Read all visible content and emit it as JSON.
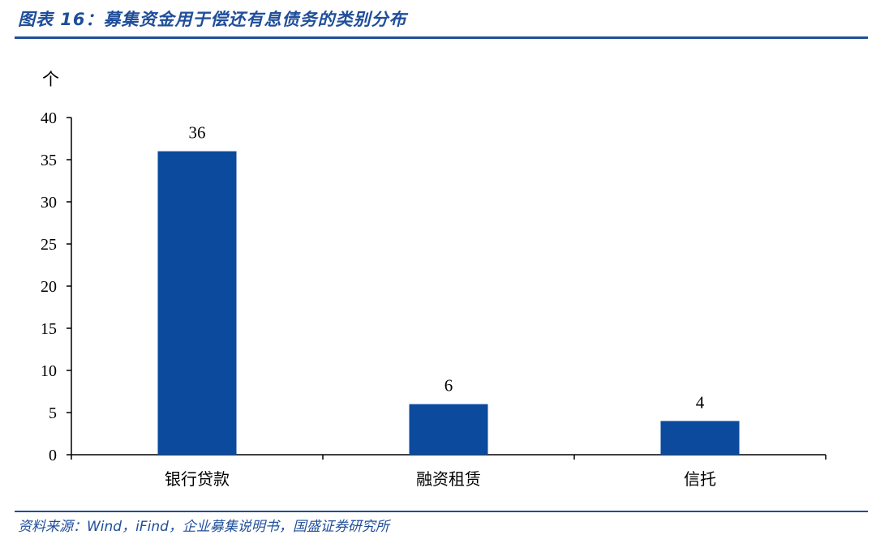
{
  "header": {
    "title": "图表 16：募集资金用于偿还有息债务的类别分布"
  },
  "footer": {
    "source": "资料来源：Wind，iFind，企业募集说明书，国盛证券研究所"
  },
  "colors": {
    "accent": "#1f4e9a",
    "bar": "#0b4a9c"
  },
  "chart_data": {
    "type": "bar",
    "categories": [
      "银行贷款",
      "融资租赁",
      "信托"
    ],
    "values": [
      36,
      6,
      4
    ],
    "ylabel": "个",
    "ylim": [
      0,
      40
    ],
    "yticks": [
      0,
      5,
      10,
      15,
      20,
      25,
      30,
      35,
      40
    ],
    "grid": false,
    "legend": "none",
    "data_labels": true
  }
}
